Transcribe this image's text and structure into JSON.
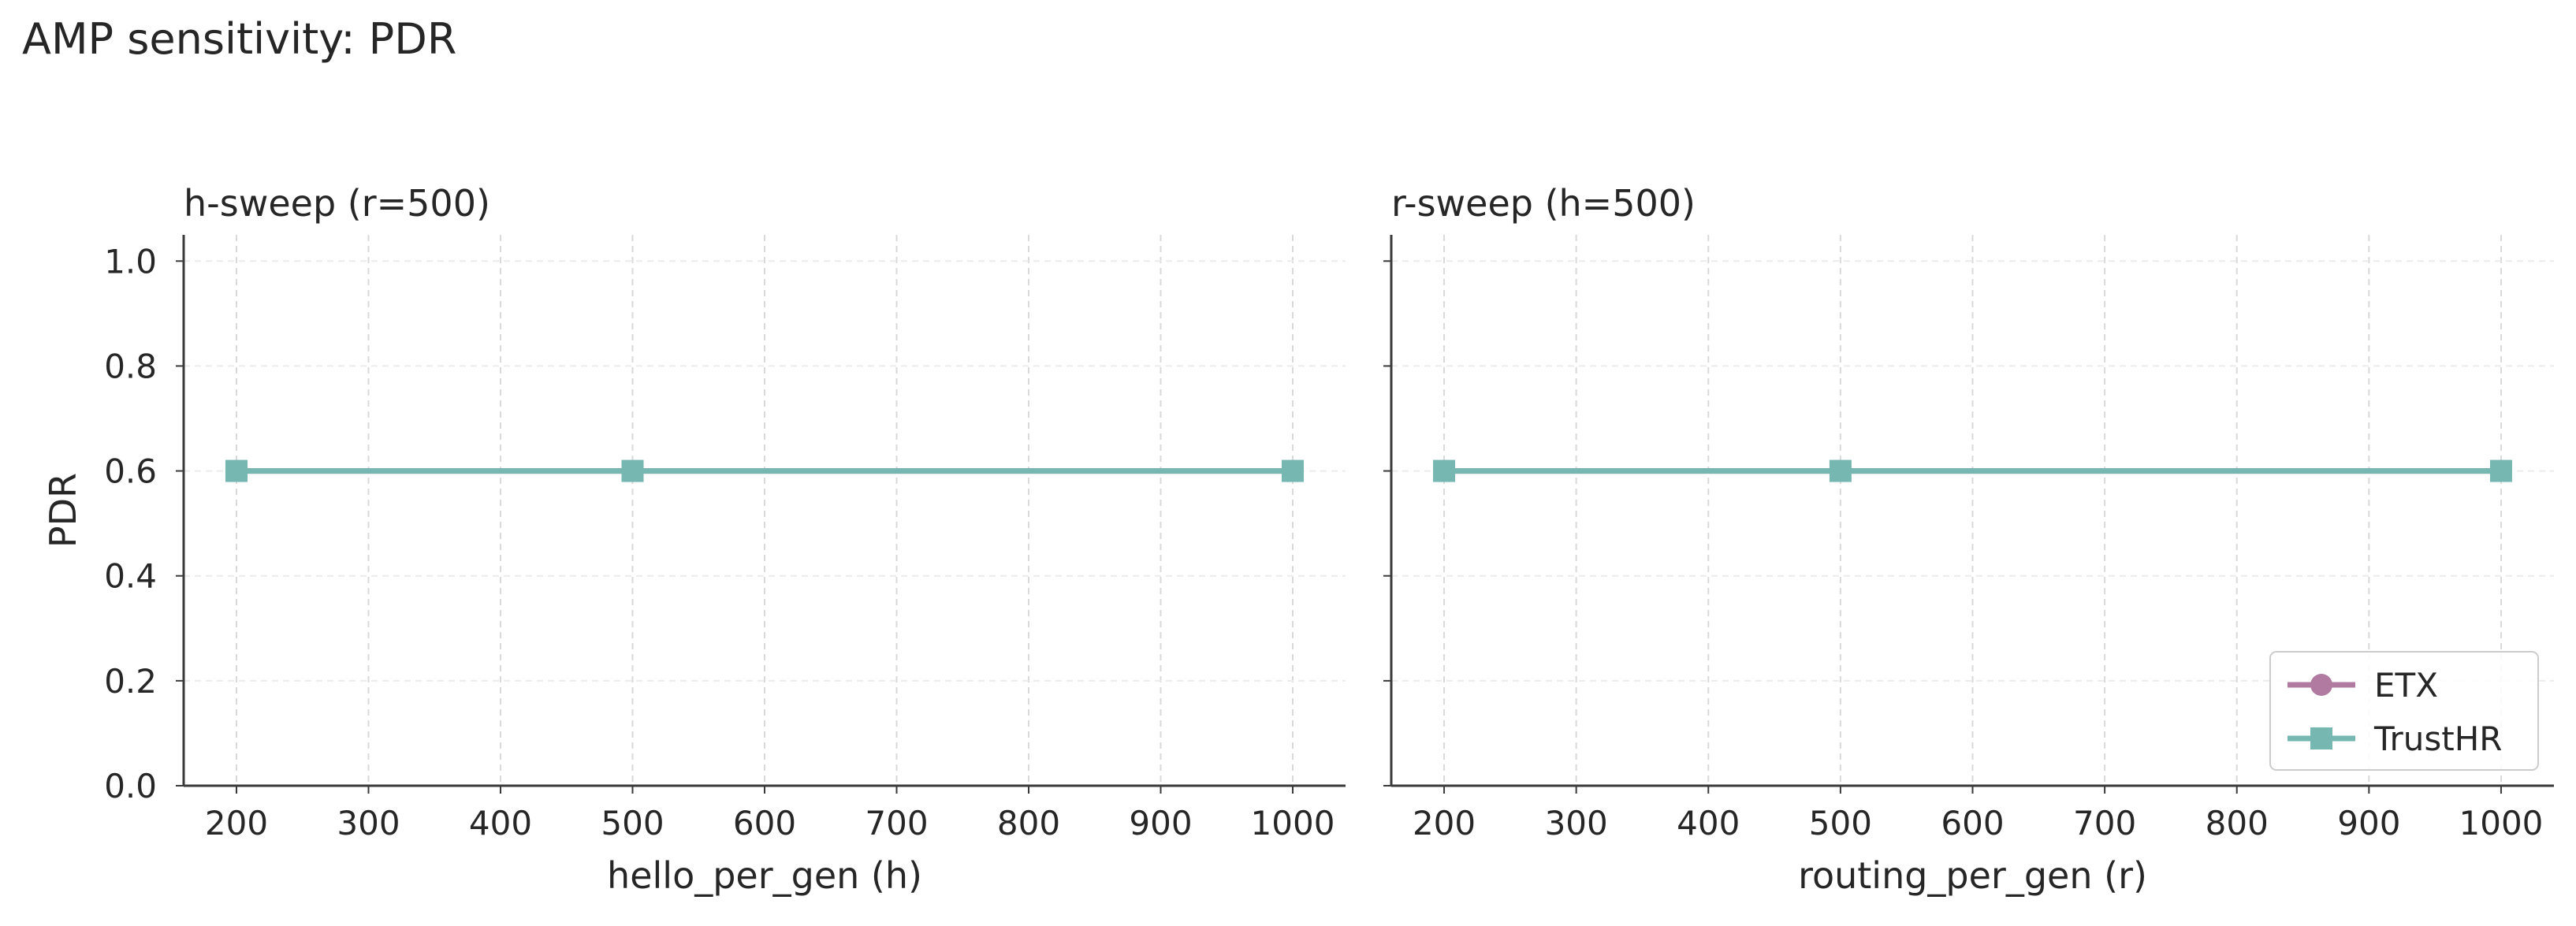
{
  "figure": {
    "title": "AMP sensitivity: PDR"
  },
  "colors": {
    "ETX": "#b07aa1",
    "TrustHR": "#76b7b2",
    "axis": "#3a3a3a",
    "grid": "#d9d9d9"
  },
  "chart_data": [
    {
      "type": "line",
      "title": "h-sweep (r=500)",
      "xlabel": "hello_per_gen (h)",
      "ylabel": "PDR",
      "xlim": [
        160,
        1040
      ],
      "ylim": [
        0,
        1.05
      ],
      "xticks": [
        200,
        300,
        400,
        500,
        600,
        700,
        800,
        900,
        1000
      ],
      "yticks": [
        0.0,
        0.2,
        0.4,
        0.6,
        0.8,
        1.0
      ],
      "xtick_labels": [
        "200",
        "300",
        "400",
        "500",
        "600",
        "700",
        "800",
        "900",
        "1000"
      ],
      "ytick_labels": [
        "0.0",
        "0.2",
        "0.4",
        "0.6",
        "0.8",
        "1.0"
      ],
      "grid": true,
      "series": [
        {
          "name": "ETX",
          "marker": "circle",
          "x": [
            200,
            500,
            1000
          ],
          "y": [
            0.6,
            0.6,
            0.6
          ]
        },
        {
          "name": "TrustHR",
          "marker": "square",
          "x": [
            200,
            500,
            1000
          ],
          "y": [
            0.6,
            0.6,
            0.6
          ]
        }
      ]
    },
    {
      "type": "line",
      "title": "r-sweep (h=500)",
      "xlabel": "routing_per_gen (r)",
      "ylabel": "",
      "xlim": [
        160,
        1040
      ],
      "ylim": [
        0,
        1.05
      ],
      "xticks": [
        200,
        300,
        400,
        500,
        600,
        700,
        800,
        900,
        1000
      ],
      "yticks": [
        0.0,
        0.2,
        0.4,
        0.6,
        0.8,
        1.0
      ],
      "xtick_labels": [
        "200",
        "300",
        "400",
        "500",
        "600",
        "700",
        "800",
        "900",
        "1000"
      ],
      "ytick_labels": [],
      "grid": true,
      "legend": {
        "placement": "lower-right",
        "entries": [
          "ETX",
          "TrustHR"
        ]
      },
      "series": [
        {
          "name": "ETX",
          "marker": "circle",
          "x": [
            200,
            500,
            1000
          ],
          "y": [
            0.6,
            0.6,
            0.6
          ]
        },
        {
          "name": "TrustHR",
          "marker": "square",
          "x": [
            200,
            500,
            1000
          ],
          "y": [
            0.6,
            0.6,
            0.6
          ]
        }
      ]
    }
  ]
}
